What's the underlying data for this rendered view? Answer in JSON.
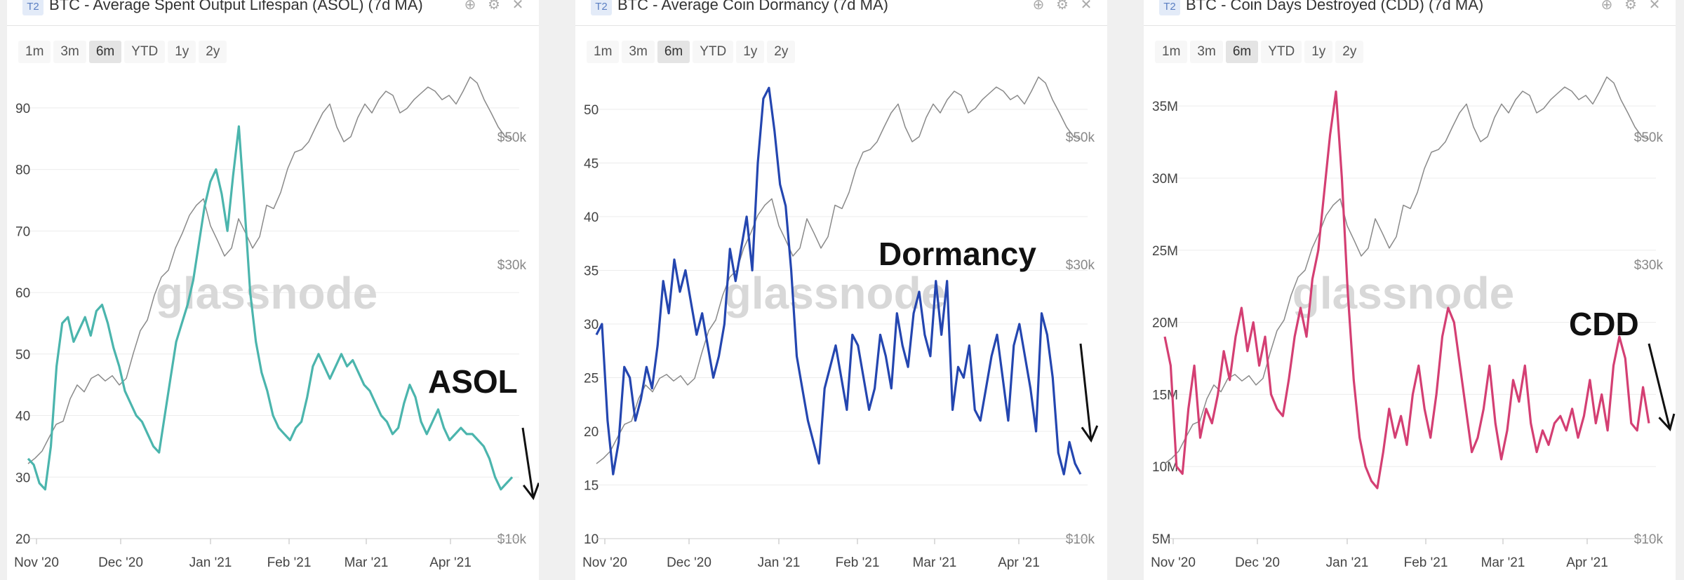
{
  "range_options": [
    "1m",
    "3m",
    "6m",
    "YTD",
    "1y",
    "2y"
  ],
  "active_range": "6m",
  "watermark": "glassnode",
  "colors": {
    "price": "#8a8a8a",
    "asol": "#4bb5ad",
    "dormancy": "#2446b0",
    "cdd": "#d43f73"
  },
  "chart_data": [
    {
      "type": "line",
      "badge": "T2",
      "title": "BTC - Average Spent Output Lifespan (ASOL) (7d MA)",
      "annotation": "ASOL",
      "x_ticks": [
        "Nov '20",
        "Dec '20",
        "Jan '21",
        "Feb '21",
        "Mar '21",
        "Apr '21"
      ],
      "y_ticks": [
        "20",
        "30",
        "40",
        "50",
        "60",
        "70",
        "80",
        "90"
      ],
      "ylim": [
        20,
        95
      ],
      "right_ticks": [
        "$50k",
        "$30k",
        "$10k"
      ],
      "right_log": [
        10000,
        60000
      ],
      "series": [
        {
          "name": "ASOL",
          "color_key": "asol",
          "values": [
            33,
            32,
            29,
            28,
            35,
            48,
            55,
            56,
            52,
            54,
            56,
            53,
            57,
            58,
            55,
            51,
            48,
            44,
            42,
            40,
            39,
            37,
            35,
            34,
            40,
            46,
            52,
            55,
            58,
            62,
            68,
            74,
            78,
            80,
            76,
            70,
            79,
            87,
            74,
            60,
            52,
            47,
            44,
            40,
            38,
            37,
            36,
            38,
            39,
            43,
            48,
            50,
            48,
            46,
            48,
            50,
            48,
            49,
            47,
            45,
            44,
            42,
            40,
            39,
            37,
            38,
            42,
            45,
            43,
            39,
            37,
            39,
            41,
            38,
            36,
            37,
            38,
            37,
            37,
            36,
            35,
            33,
            30,
            28,
            29,
            30
          ]
        },
        {
          "name": "Price",
          "color_key": "price",
          "values": [
            13500,
            13800,
            14200,
            15000,
            15800,
            16000,
            17500,
            18500,
            18000,
            19000,
            19300,
            18800,
            19200,
            18500,
            19000,
            21000,
            23000,
            24000,
            26500,
            28500,
            29300,
            32000,
            34000,
            36500,
            38000,
            39000,
            35000,
            33000,
            31000,
            32000,
            36000,
            34000,
            32000,
            33500,
            38000,
            37500,
            40000,
            44000,
            47000,
            47500,
            49000,
            52000,
            55000,
            57000,
            52000,
            49000,
            50000,
            54000,
            57000,
            55000,
            58000,
            60000,
            59000,
            55000,
            56000,
            58000,
            59500,
            61000,
            60000,
            58000,
            59000,
            57000,
            60000,
            63500,
            62000,
            58000,
            55000,
            52000,
            50000,
            49500
          ]
        }
      ]
    },
    {
      "type": "line",
      "badge": "T2",
      "title": "BTC - Average Coin Dormancy (7d MA)",
      "annotation": "Dormancy",
      "x_ticks": [
        "Nov '20",
        "Dec '20",
        "Jan '21",
        "Feb '21",
        "Mar '21",
        "Apr '21"
      ],
      "y_ticks": [
        "10",
        "15",
        "20",
        "25",
        "30",
        "35",
        "40",
        "45",
        "50"
      ],
      "ylim": [
        10,
        53
      ],
      "right_ticks": [
        "$50k",
        "$30k",
        "$10k"
      ],
      "right_log": [
        10000,
        60000
      ],
      "series": [
        {
          "name": "Dormancy",
          "color_key": "dormancy",
          "values": [
            29,
            30,
            21,
            16,
            19,
            26,
            25,
            21,
            23,
            26,
            24,
            28,
            34,
            31,
            36,
            33,
            35,
            32,
            29,
            31,
            28,
            25,
            27,
            30,
            37,
            34,
            37,
            40,
            35,
            45,
            51,
            52,
            48,
            43,
            41,
            35,
            27,
            24,
            21,
            19,
            17,
            24,
            26,
            28,
            25,
            22,
            29,
            28,
            25,
            22,
            24,
            29,
            27,
            24,
            31,
            28,
            26,
            31,
            33,
            29,
            27,
            34,
            29,
            34,
            22,
            26,
            25,
            28,
            22,
            21,
            24,
            27,
            29,
            25,
            21,
            28,
            30,
            27,
            24,
            20,
            31,
            29,
            25,
            18,
            16,
            19,
            17,
            16
          ]
        },
        {
          "name": "Price",
          "color_key": "price",
          "values": [
            13500,
            13800,
            14200,
            15000,
            15800,
            16000,
            17500,
            18500,
            18000,
            19000,
            19300,
            18800,
            19200,
            18500,
            19000,
            21000,
            23000,
            24000,
            26500,
            28500,
            29300,
            32000,
            34000,
            36500,
            38000,
            39000,
            35000,
            33000,
            31000,
            32000,
            36000,
            34000,
            32000,
            33500,
            38000,
            37500,
            40000,
            44000,
            47000,
            47500,
            49000,
            52000,
            55000,
            57000,
            52000,
            49000,
            50000,
            54000,
            57000,
            55000,
            58000,
            60000,
            59000,
            55000,
            56000,
            58000,
            59500,
            61000,
            60000,
            58000,
            59000,
            57000,
            60000,
            63500,
            62000,
            58000,
            55000,
            52000,
            50000,
            49500
          ]
        }
      ]
    },
    {
      "type": "line",
      "badge": "T2",
      "title": "BTC - Coin Days Destroyed (CDD) (7d MA)",
      "annotation": "CDD",
      "x_ticks": [
        "Nov '20",
        "Dec '20",
        "Jan '21",
        "Feb '21",
        "Mar '21",
        "Apr '21"
      ],
      "y_ticks": [
        "5M",
        "10M",
        "15M",
        "20M",
        "25M",
        "30M",
        "35M"
      ],
      "ylim": [
        5000000,
        37000000
      ],
      "right_ticks": [
        "$50k",
        "$30k",
        "$10k"
      ],
      "right_log": [
        10000,
        60000
      ],
      "series": [
        {
          "name": "CDD",
          "color_key": "cdd",
          "values": [
            19000000,
            17000000,
            10000000,
            9500000,
            14000000,
            17000000,
            12000000,
            14000000,
            13000000,
            15000000,
            18000000,
            16000000,
            19000000,
            21000000,
            18000000,
            20000000,
            17000000,
            19000000,
            15000000,
            14000000,
            13500000,
            16000000,
            19000000,
            21000000,
            19000000,
            23000000,
            25000000,
            29000000,
            33000000,
            36000000,
            30000000,
            22000000,
            16000000,
            12000000,
            10000000,
            9000000,
            8500000,
            11000000,
            14000000,
            12000000,
            13500000,
            11500000,
            15000000,
            17000000,
            14000000,
            12000000,
            15000000,
            19000000,
            21000000,
            20000000,
            17000000,
            14000000,
            11000000,
            12000000,
            14000000,
            17000000,
            13000000,
            10500000,
            12500000,
            16000000,
            14500000,
            17000000,
            13000000,
            11000000,
            12500000,
            11500000,
            13000000,
            13500000,
            12500000,
            14000000,
            12000000,
            13500000,
            16000000,
            13000000,
            15000000,
            12500000,
            17000000,
            19000000,
            17500000,
            13000000,
            12500000,
            15500000,
            13000000
          ]
        },
        {
          "name": "Price",
          "color_key": "price",
          "values": [
            13500,
            13800,
            14200,
            15000,
            15800,
            16000,
            17500,
            18500,
            18000,
            19000,
            19300,
            18800,
            19200,
            18500,
            19000,
            21000,
            23000,
            24000,
            26500,
            28500,
            29300,
            32000,
            34000,
            36500,
            38000,
            39000,
            35000,
            33000,
            31000,
            32000,
            36000,
            34000,
            32000,
            33500,
            38000,
            37500,
            40000,
            44000,
            47000,
            47500,
            49000,
            52000,
            55000,
            57000,
            52000,
            49000,
            50000,
            54000,
            57000,
            55000,
            58000,
            60000,
            59000,
            55000,
            56000,
            58000,
            59500,
            61000,
            60000,
            58000,
            59000,
            57000,
            60000,
            63500,
            62000,
            58000,
            55000,
            52000,
            50000,
            49500
          ]
        }
      ]
    }
  ]
}
